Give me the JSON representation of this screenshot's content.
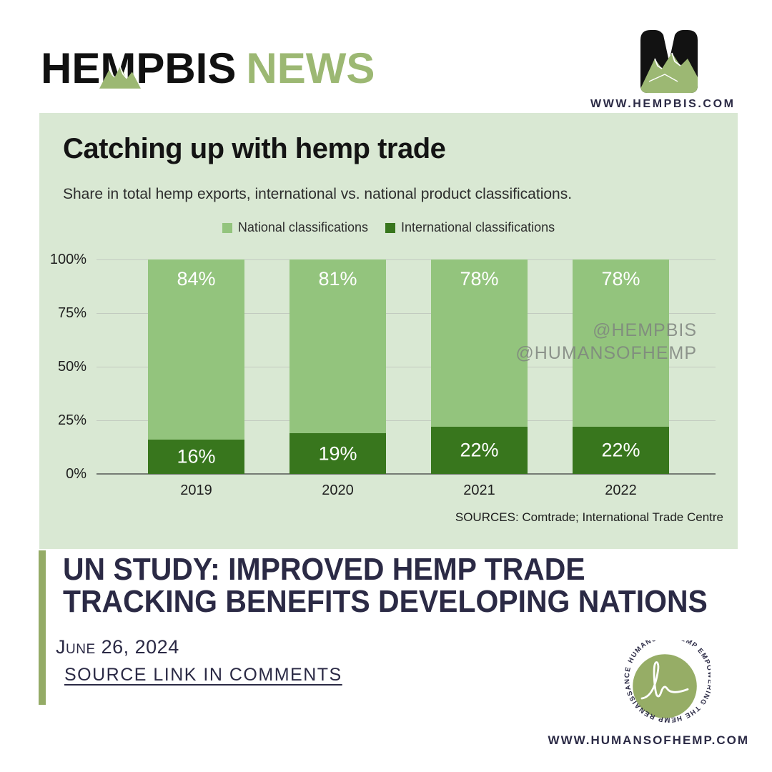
{
  "header": {
    "logo_main": "HEMPBIS",
    "logo_accent": "NEWS",
    "site_url": "WWW.HEMPBIS.COM"
  },
  "chart_data": {
    "type": "bar",
    "variant": "stacked",
    "title": "Catching up with hemp trade",
    "subtitle": "Share in total hemp exports, international vs. national product classifications.",
    "categories": [
      "2019",
      "2020",
      "2021",
      "2022"
    ],
    "series": [
      {
        "name": "National classifications",
        "color": "#93c47d",
        "values": [
          84,
          81,
          78,
          78
        ]
      },
      {
        "name": "International classifications",
        "color": "#38761d",
        "values": [
          16,
          19,
          22,
          22
        ]
      }
    ],
    "value_suffix": "%",
    "yticks_top_to_bottom": [
      "100%",
      "75%",
      "50%",
      "25%",
      "0%"
    ],
    "ylim": [
      0,
      100
    ],
    "grid": true,
    "legend_position": "top-center",
    "sources": "SOURCES: Comtrade; International Trade Centre"
  },
  "watermark": {
    "line1": "@HEMPBIS",
    "line2": "@HUMANSOFHEMP"
  },
  "article": {
    "headline_line1": "UN STUDY: IMPROVED HEMP TRADE",
    "headline_line2": "TRACKING BENEFITS DEVELOPING NATIONS",
    "date": "June 26, 2024",
    "source_link": "SOURCE LINK IN COMMENTS"
  },
  "footer": {
    "badge_ring_text": "HUMANS OF HEMP  EMPOWERING THE HEMP  RENAISSANCE",
    "site_url": "WWW.HUMANSOFHEMP.COM"
  },
  "colors": {
    "card_background": "#d9e8d3",
    "bar_light_green": "#93c47d",
    "bar_dark_green": "#38761d",
    "sage_accent": "#94ab66",
    "navy_text": "#2b2a45"
  }
}
